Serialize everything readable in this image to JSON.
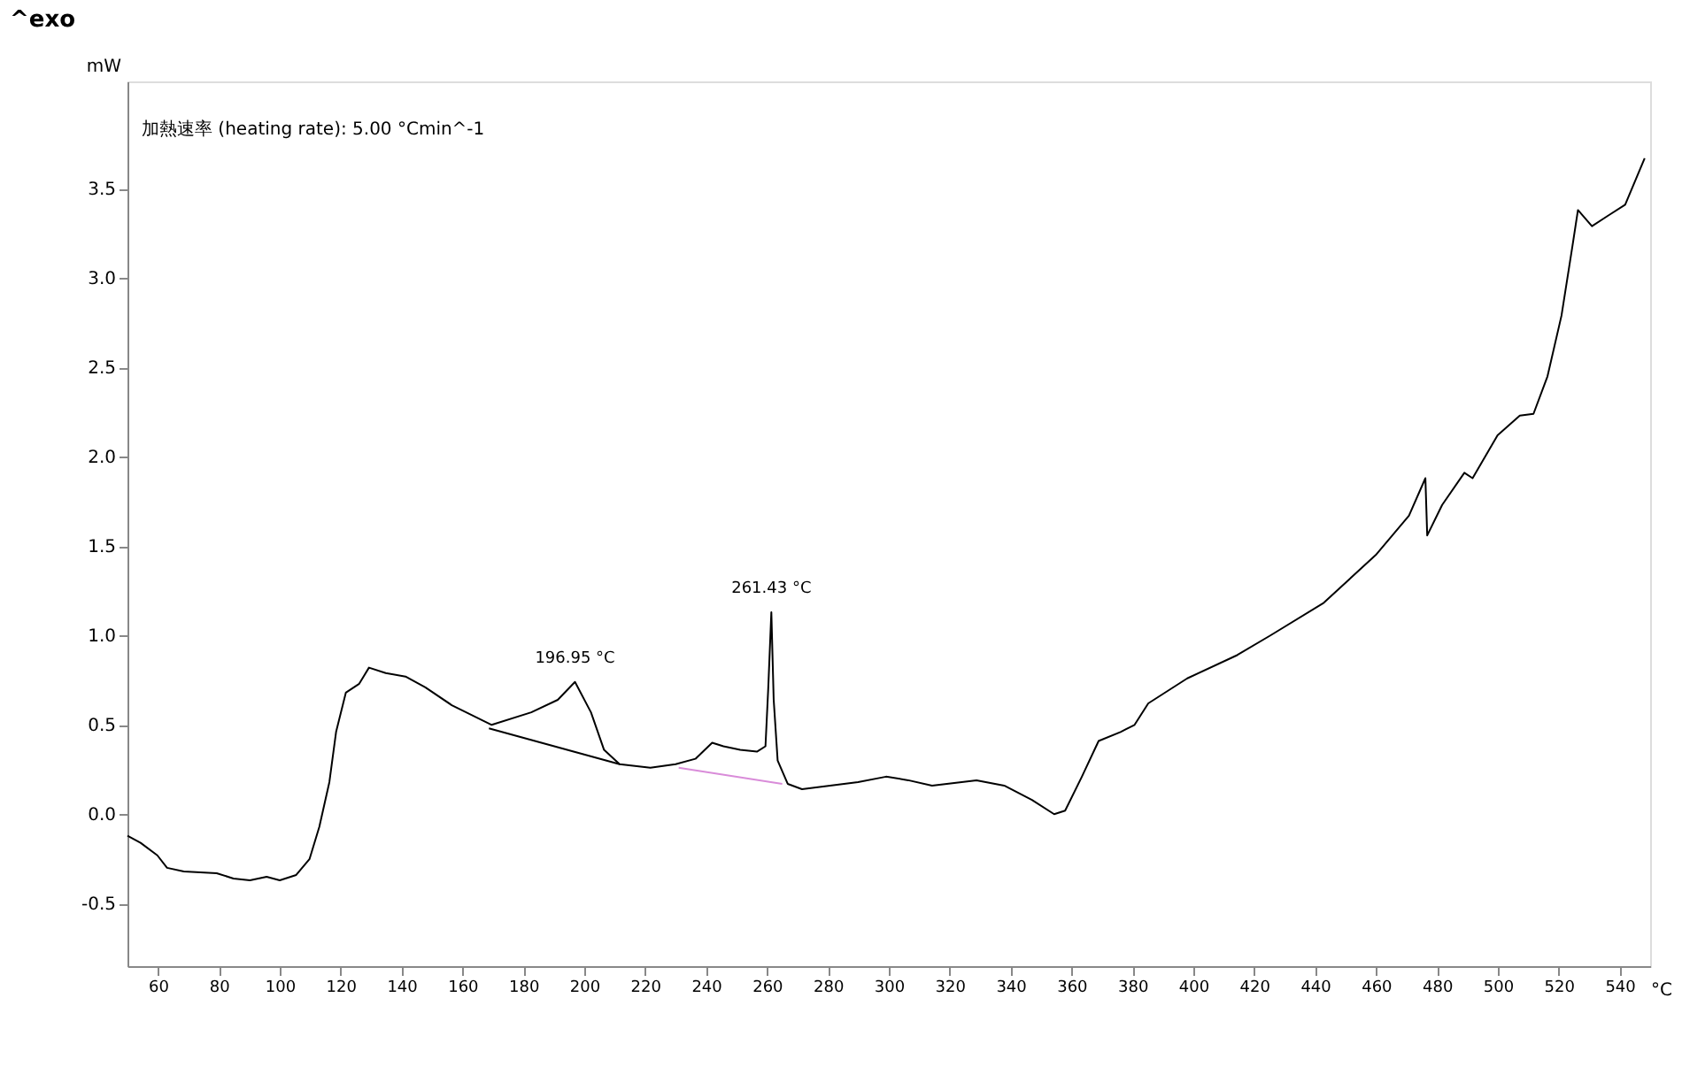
{
  "chart_data": {
    "type": "line",
    "title": "^exo",
    "xlabel": "°C",
    "ylabel": "mW",
    "xlim": [
      50,
      550
    ],
    "ylim": [
      -0.85,
      4.1
    ],
    "xticks": [
      60,
      80,
      100,
      120,
      140,
      160,
      180,
      200,
      220,
      240,
      260,
      280,
      300,
      320,
      340,
      360,
      380,
      400,
      420,
      440,
      460,
      480,
      500,
      520,
      540
    ],
    "yticks": [
      {
        "value": -0.5,
        "label": "-0.5"
      },
      {
        "value": 0,
        "label": "0.0"
      },
      {
        "value": 0.5,
        "label": "0.5"
      },
      {
        "value": 1,
        "label": "1.0"
      },
      {
        "value": 1.5,
        "label": "1.5"
      },
      {
        "value": 2,
        "label": "2.0"
      },
      {
        "value": 2.5,
        "label": "2.5"
      },
      {
        "value": 3,
        "label": "3.0"
      },
      {
        "value": 3.5,
        "label": "3.5"
      }
    ],
    "grid": false,
    "series": [
      {
        "type": "line",
        "color": "#000000",
        "x": [
          50,
          54.3,
          59.8,
          63.0,
          68.5,
          79.3,
          84.8,
          90.2,
          95.7,
          100,
          105.4,
          109.8,
          113,
          116.3,
          118.5,
          121.7,
          126.1,
          129.3,
          134.8,
          141.3,
          147.8,
          156.5,
          169.6,
          182.6,
          191.3,
          196.95,
          202.2,
          206.5,
          211.6,
          221.7,
          230,
          236.5,
          242,
          245.7,
          251.2,
          256.7,
          259.5,
          260.4,
          261.43,
          262.2,
          263.5,
          266.8,
          271.5,
          280.7,
          289.9,
          299.1,
          306.4,
          314.2,
          328.8,
          337.9,
          347,
          354.3,
          357.9,
          363.4,
          368.9,
          376.1,
          380.7,
          385.2,
          398,
          414.4,
          425.3,
          442.6,
          459.9,
          470.8,
          476.2,
          476.8,
          481.7,
          489,
          491.7,
          499.9,
          507.2,
          511.7,
          516.3,
          520.9,
          524.5,
          526.3,
          530.9,
          536.3,
          541.8,
          548.2
        ],
        "values": [
          -0.12,
          -0.16,
          -0.23,
          -0.3,
          -0.32,
          -0.33,
          -0.36,
          -0.37,
          -0.35,
          -0.37,
          -0.34,
          -0.25,
          -0.07,
          0.18,
          0.46,
          0.68,
          0.73,
          0.82,
          0.79,
          0.77,
          0.71,
          0.61,
          0.5,
          0.57,
          0.64,
          0.74,
          0.57,
          0.36,
          0.28,
          0.26,
          0.28,
          0.31,
          0.4,
          0.38,
          0.36,
          0.35,
          0.38,
          0.7,
          1.13,
          0.64,
          0.3,
          0.17,
          0.14,
          0.16,
          0.18,
          0.21,
          0.19,
          0.16,
          0.19,
          0.16,
          0.08,
          0.0,
          0.02,
          0.21,
          0.41,
          0.46,
          0.5,
          0.62,
          0.76,
          0.89,
          1.0,
          1.18,
          1.45,
          1.67,
          1.88,
          1.56,
          1.73,
          1.91,
          1.88,
          2.12,
          2.23,
          2.24,
          2.45,
          2.79,
          3.18,
          3.38,
          3.29,
          3.35,
          3.41,
          3.67
        ]
      },
      {
        "type": "line",
        "color": "#000000",
        "x": [
          168.7,
          211.6
        ],
        "values": [
          0.48,
          0.28
        ]
      },
      {
        "type": "line",
        "color": "#d98cd9",
        "x": [
          231,
          265
        ],
        "values": [
          0.26,
          0.17
        ]
      }
    ],
    "annotations": [
      "加熱速率 (heating rate): 5.00 °Cmin^-1",
      {
        "text": "196.95 °C",
        "x": 196.95,
        "y": 0.74
      },
      {
        "text": "261.43 °C",
        "x": 261.43,
        "y": 1.13
      }
    ]
  }
}
